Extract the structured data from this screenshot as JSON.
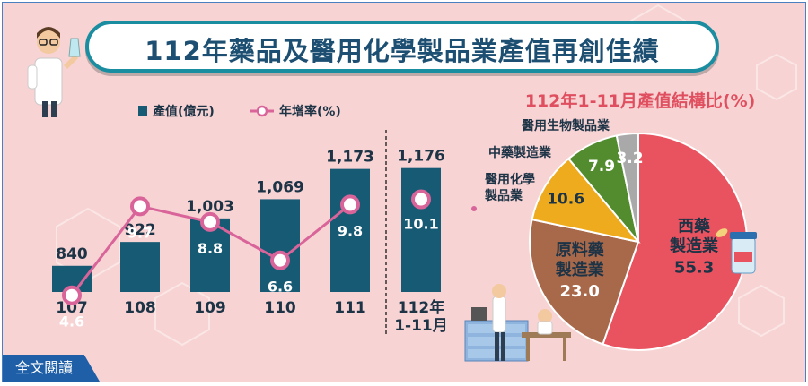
{
  "title": "112年藥品及醫用化學製品業產值再創佳績",
  "read_more": "全文閱讀",
  "legend": {
    "output": "產值(億元)",
    "growth": "年增率(%)"
  },
  "colors": {
    "bar": "#165a74",
    "line": "#d9649a",
    "pink_bg": "#f7d3d3",
    "title_border": "#1a8da0",
    "title_text": "#1d4f72",
    "pie_title": "#e04f5f"
  },
  "chart_data": [
    {
      "type": "bar",
      "categories": [
        "107",
        "108",
        "109",
        "110",
        "111",
        "112年 1-11月"
      ],
      "series": [
        {
          "name": "產值(億元)",
          "type": "bar",
          "values": [
            840,
            922,
            1003,
            1069,
            1173,
            1176
          ],
          "labels": [
            "840",
            "922",
            "1,003",
            "1,069",
            "1,173",
            "1,176"
          ]
        },
        {
          "name": "年增率(%)",
          "type": "line",
          "values": [
            4.6,
            9.7,
            8.8,
            6.6,
            9.8,
            10.1
          ]
        }
      ]
    },
    {
      "type": "pie",
      "title": "112年1-11月產值結構比(%)",
      "slices": [
        {
          "label": "西藥製造業",
          "value": 55.3,
          "color": "#e9535f"
        },
        {
          "label": "原料藥製造業",
          "value": 23.0,
          "color": "#a8684a"
        },
        {
          "label": "醫用化學製品業",
          "value": 10.6,
          "color": "#eeab1e"
        },
        {
          "label": "中藥製造業",
          "value": 7.9,
          "color": "#528c2e"
        },
        {
          "label": "醫用生物製品業",
          "value": 3.2,
          "color": "#a9a9a9"
        }
      ]
    }
  ]
}
